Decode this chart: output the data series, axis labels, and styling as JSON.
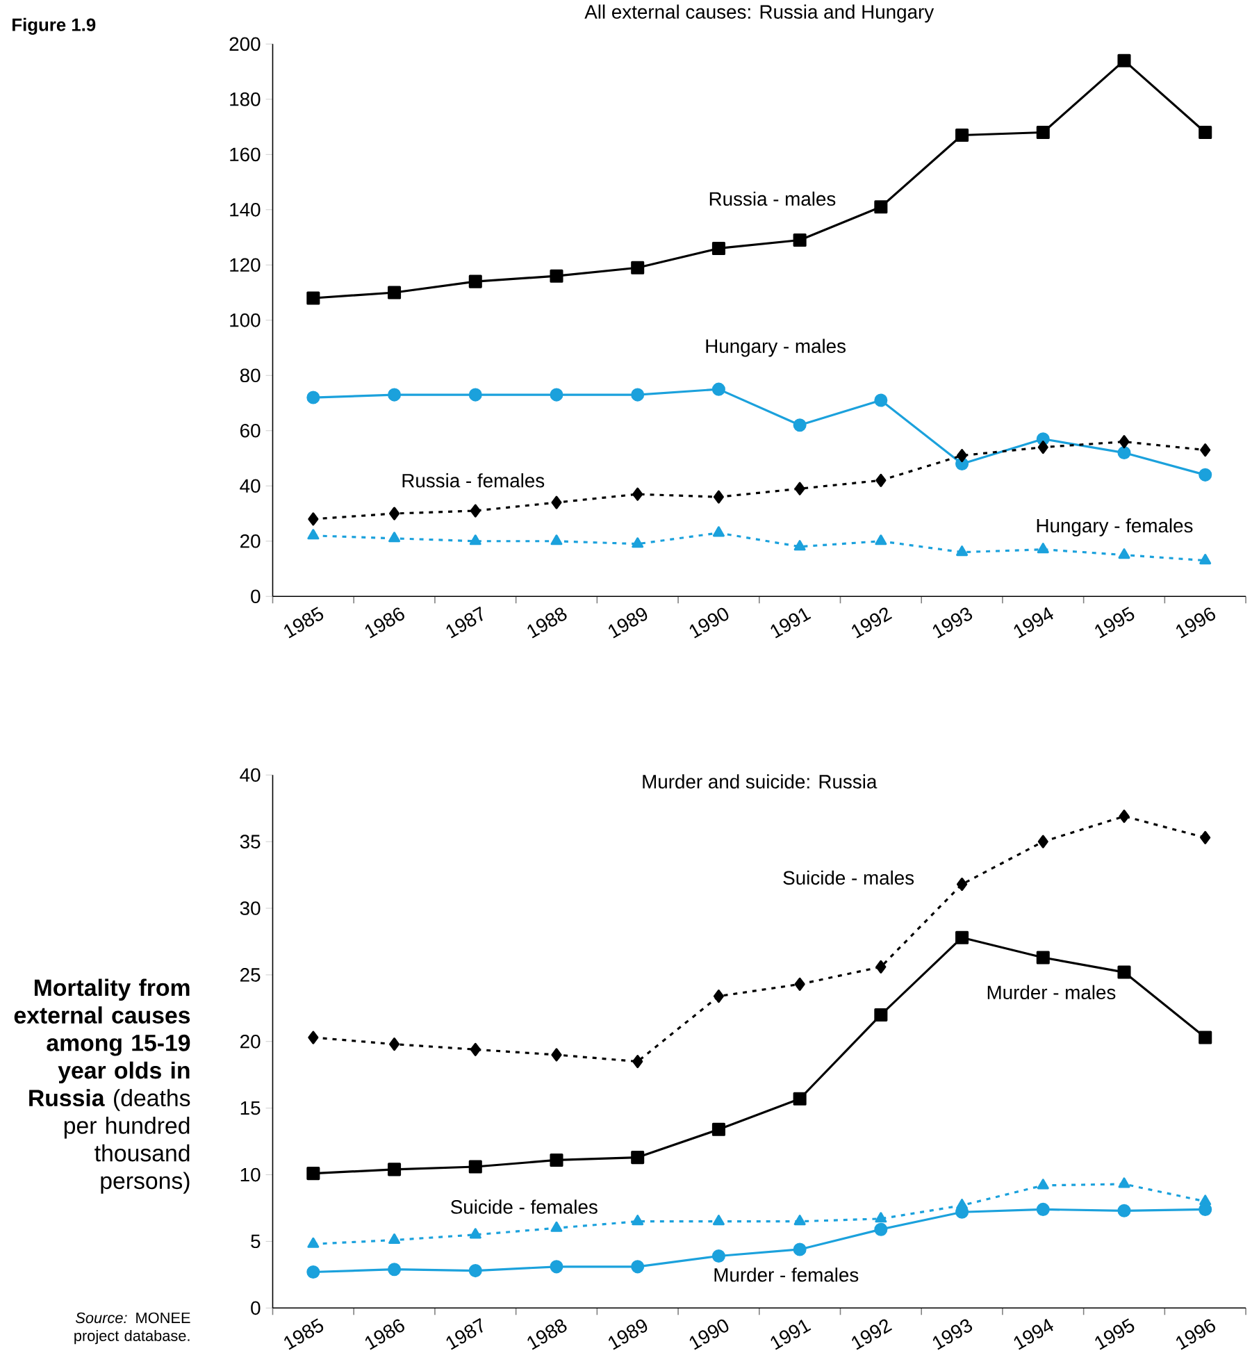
{
  "chart_data": [
    {
      "type": "line",
      "title": "All external causes: Russia and Hungary",
      "categories": [
        "1985",
        "1986",
        "1987",
        "1988",
        "1989",
        "1990",
        "1991",
        "1992",
        "1993",
        "1994",
        "1995",
        "1996"
      ],
      "series": [
        {
          "name": "Russia - males",
          "color": "#000000",
          "marker": "square",
          "line_style": "solid",
          "values": [
            108,
            110,
            114,
            116,
            119,
            126,
            129,
            141,
            167,
            168,
            194,
            168
          ]
        },
        {
          "name": "Hungary - males",
          "color": "#1ba1dc",
          "marker": "circle",
          "line_style": "solid",
          "values": [
            72,
            73,
            73,
            73,
            73,
            75,
            62,
            71,
            48,
            57,
            52,
            44
          ]
        },
        {
          "name": "Russia - females",
          "color": "#000000",
          "marker": "diamond",
          "line_style": "dashed",
          "values": [
            28,
            30,
            31,
            34,
            37,
            36,
            39,
            42,
            51,
            54,
            56,
            53
          ]
        },
        {
          "name": "Hungary - females",
          "color": "#1ba1dc",
          "marker": "triangle",
          "line_style": "dashed",
          "values": [
            22,
            21,
            20,
            20,
            19,
            23,
            18,
            20,
            16,
            17,
            15,
            13
          ]
        }
      ],
      "ylim": [
        0,
        200
      ],
      "yticks": [
        0,
        20,
        40,
        60,
        80,
        100,
        120,
        140,
        160,
        180,
        200
      ],
      "grid": false,
      "legend": false,
      "annotations": [
        "Figure 1.9"
      ]
    },
    {
      "type": "line",
      "title": "Murder and suicide: Russia",
      "categories": [
        "1985",
        "1986",
        "1987",
        "1988",
        "1989",
        "1990",
        "1991",
        "1992",
        "1993",
        "1994",
        "1995",
        "1996"
      ],
      "series": [
        {
          "name": "Suicide - males",
          "color": "#000000",
          "marker": "diamond",
          "line_style": "dashed",
          "values": [
            20.3,
            19.8,
            19.4,
            19,
            18.5,
            23.4,
            24.3,
            25.6,
            31.8,
            35,
            36.9,
            35.3
          ]
        },
        {
          "name": "Murder - males",
          "color": "#000000",
          "marker": "square",
          "line_style": "solid",
          "values": [
            10.1,
            10.4,
            10.6,
            11.1,
            11.3,
            13.4,
            15.7,
            22,
            27.8,
            26.3,
            25.2,
            20.3
          ]
        },
        {
          "name": "Suicide - females",
          "color": "#1ba1dc",
          "marker": "triangle",
          "line_style": "dashed",
          "values": [
            4.8,
            5.1,
            5.5,
            6,
            6.5,
            6.5,
            6.5,
            6.7,
            7.7,
            9.2,
            9.3,
            8
          ]
        },
        {
          "name": "Murder - females",
          "color": "#1ba1dc",
          "marker": "circle",
          "line_style": "solid",
          "values": [
            2.7,
            2.9,
            2.8,
            3.1,
            3.1,
            3.9,
            4.4,
            5.9,
            7.2,
            7.4,
            7.3,
            7.4
          ]
        }
      ],
      "ylim": [
        0,
        40
      ],
      "yticks": [
        0,
        5,
        10,
        15,
        20,
        25,
        30,
        35,
        40
      ],
      "grid": false,
      "legend": false,
      "annotations": [
        "**Mortality from external causes among 15-19 year olds in Russia** (deaths per hundred thousand persons)",
        "*Source:* MONEE project database."
      ]
    }
  ]
}
